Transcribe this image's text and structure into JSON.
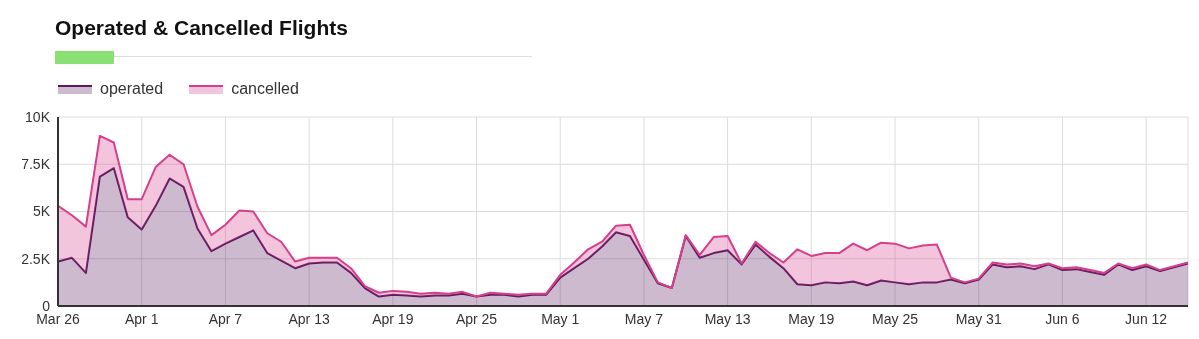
{
  "chart_data": {
    "type": "area",
    "title": "Operated & Cancelled Flights",
    "stacked": true,
    "grid": true,
    "legend": "top left",
    "marker": "none",
    "line_style": "solid",
    "x": [
      "--03-26",
      "--03-27",
      "--03-28",
      "--03-29",
      "--03-30",
      "--03-31",
      "--04-01",
      "--04-02",
      "--04-03",
      "--04-04",
      "--04-05",
      "--04-06",
      "--04-07",
      "--04-08",
      "--04-09",
      "--04-10",
      "--04-11",
      "--04-12",
      "--04-13",
      "--04-14",
      "--04-15",
      "--04-16",
      "--04-17",
      "--04-18",
      "--04-19",
      "--04-20",
      "--04-21",
      "--04-22",
      "--04-23",
      "--04-24",
      "--04-25",
      "--04-26",
      "--04-27",
      "--04-28",
      "--04-29",
      "--04-30",
      "--05-01",
      "--05-02",
      "--05-03",
      "--05-04",
      "--05-05",
      "--05-06",
      "--05-07",
      "--05-08",
      "--05-09",
      "--05-10",
      "--05-11",
      "--05-12",
      "--05-13",
      "--05-14",
      "--05-15",
      "--05-16",
      "--05-17",
      "--05-18",
      "--05-19",
      "--05-20",
      "--05-21",
      "--05-22",
      "--05-23",
      "--05-24",
      "--05-25",
      "--05-26",
      "--05-27",
      "--05-28",
      "--05-29",
      "--05-30",
      "--05-31",
      "--06-01",
      "--06-02",
      "--06-03",
      "--06-04",
      "--06-05",
      "--06-06",
      "--06-07",
      "--06-08",
      "--06-09",
      "--06-10",
      "--06-11",
      "--06-12",
      "--06-13",
      "--06-14",
      "--06-15"
    ],
    "series": [
      {
        "name": "operated",
        "color": "#5c1a5e",
        "values": [
          2350,
          2550,
          1750,
          6850,
          7300,
          4700,
          4050,
          5300,
          6750,
          6300,
          4100,
          2900,
          3300,
          3650,
          4000,
          2800,
          2400,
          2000,
          2250,
          2300,
          2300,
          1750,
          950,
          500,
          600,
          550,
          500,
          550,
          550,
          650,
          500,
          600,
          600,
          500,
          600,
          600,
          1500,
          2000,
          2500,
          3150,
          3900,
          3700,
          2450,
          1200,
          950,
          3700,
          2550,
          2800,
          2950,
          2200,
          3250,
          2600,
          2000,
          1150,
          1100,
          1250,
          1200,
          1300,
          1100,
          1350,
          1250,
          1150,
          1250,
          1250,
          1400,
          1200,
          1400,
          2200,
          2050,
          2100,
          1950,
          2200,
          1900,
          1950,
          1800,
          1650,
          2200,
          1900,
          2100,
          1850,
          2050,
          2250
        ]
      },
      {
        "name": "cancelled",
        "color": "#d63f8c",
        "values": [
          2950,
          2250,
          2450,
          2150,
          1350,
          950,
          1600,
          2050,
          1250,
          1200,
          1150,
          850,
          1000,
          1400,
          1000,
          1050,
          1000,
          350,
          300,
          250,
          250,
          250,
          100,
          200,
          200,
          200,
          150,
          150,
          100,
          100,
          0,
          100,
          50,
          100,
          50,
          50,
          150,
          300,
          500,
          250,
          350,
          600,
          250,
          50,
          0,
          50,
          150,
          850,
          750,
          50,
          150,
          200,
          300,
          1850,
          1550,
          1550,
          1600,
          2000,
          1850,
          2000,
          2050,
          1900,
          1950,
          2000,
          100,
          50,
          50,
          100,
          150,
          150,
          150,
          50,
          100,
          100,
          100,
          100,
          50,
          100,
          100,
          50,
          50,
          50
        ]
      }
    ],
    "xlim": [
      "--03-26",
      "--06-15"
    ],
    "xticks": [
      {
        "value": "--03-26",
        "label": "Mar 26"
      },
      {
        "value": "--04-01",
        "label": "Apr 1"
      },
      {
        "value": "--04-07",
        "label": "Apr 7"
      },
      {
        "value": "--04-13",
        "label": "Apr 13"
      },
      {
        "value": "--04-19",
        "label": "Apr 19"
      },
      {
        "value": "--04-25",
        "label": "Apr 25"
      },
      {
        "value": "--05-01",
        "label": "May 1"
      },
      {
        "value": "--05-07",
        "label": "May 7"
      },
      {
        "value": "--05-13",
        "label": "May 13"
      },
      {
        "value": "--05-19",
        "label": "May 19"
      },
      {
        "value": "--05-25",
        "label": "May 25"
      },
      {
        "value": "--05-31",
        "label": "May 31"
      },
      {
        "value": "--06-06",
        "label": "Jun 6"
      },
      {
        "value": "--06-12",
        "label": "Jun 12"
      }
    ],
    "ylim": [
      0,
      10000
    ],
    "yticks": [
      0,
      {
        "value": 2500,
        "label": "2.5K"
      },
      {
        "value": 5000,
        "label": "5K"
      },
      {
        "value": 7500,
        "label": "7.5K"
      },
      {
        "value": 10000,
        "label": "10K"
      }
    ]
  }
}
